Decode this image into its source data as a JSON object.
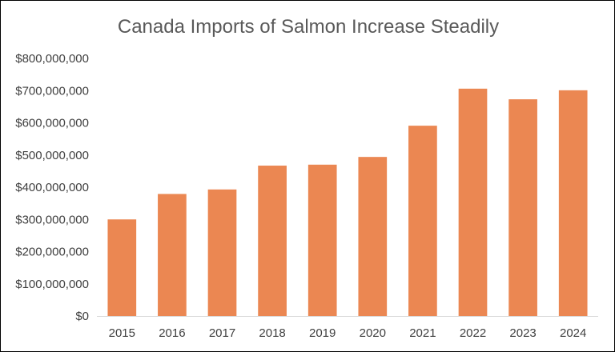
{
  "chart_data": {
    "type": "bar",
    "title": "Canada Imports of Salmon Increase Steadily",
    "xlabel": "",
    "ylabel": "",
    "categories": [
      "2015",
      "2016",
      "2017",
      "2018",
      "2019",
      "2020",
      "2021",
      "2022",
      "2023",
      "2024"
    ],
    "values": [
      300000000,
      379000000,
      393000000,
      467000000,
      470000000,
      494000000,
      591000000,
      706000000,
      673000000,
      701000000
    ],
    "ylim": [
      0,
      800000000
    ],
    "yticks": [
      0,
      100000000,
      200000000,
      300000000,
      400000000,
      500000000,
      600000000,
      700000000,
      800000000
    ],
    "ytick_labels": [
      "$0",
      "$100,000,000",
      "$200,000,000",
      "$300,000,000",
      "$400,000,000",
      "$500,000,000",
      "$600,000,000",
      "$700,000,000",
      "$800,000,000"
    ],
    "grid": false,
    "legend": "none",
    "bar_color": "#EB8752"
  }
}
